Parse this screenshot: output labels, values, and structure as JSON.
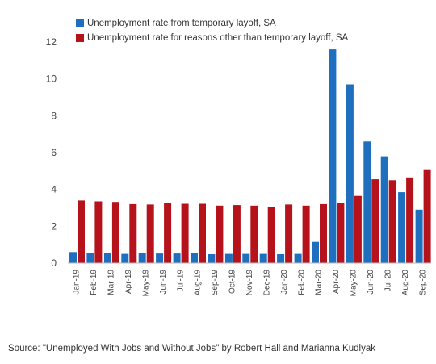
{
  "chart_data": {
    "type": "bar",
    "categories": [
      "Jan-19",
      "Feb-19",
      "Mar-19",
      "Apr-19",
      "May-19",
      "Jun-19",
      "Jul-19",
      "Aug-19",
      "Sep-19",
      "Oct-19",
      "Nov-19",
      "Dec-19",
      "Jan-20",
      "Feb-20",
      "Mar-20",
      "Apr-20",
      "May-20",
      "Jun-20",
      "Jul-20",
      "Aug-20",
      "Sep-20"
    ],
    "series": [
      {
        "name": "Unemployment rate from temporary layoff, SA",
        "color": "#1f6fbf",
        "values": [
          0.6,
          0.55,
          0.55,
          0.5,
          0.55,
          0.52,
          0.52,
          0.55,
          0.48,
          0.5,
          0.5,
          0.5,
          0.48,
          0.5,
          1.15,
          11.6,
          9.7,
          6.6,
          5.8,
          3.85,
          2.9
        ]
      },
      {
        "name": "Unemployment rate for reasons other than temporary layoff, SA",
        "color": "#b5121b",
        "values": [
          3.4,
          3.35,
          3.32,
          3.2,
          3.18,
          3.25,
          3.22,
          3.22,
          3.12,
          3.15,
          3.12,
          3.05,
          3.18,
          3.12,
          3.2,
          3.25,
          3.65,
          4.55,
          4.5,
          4.65,
          5.05
        ]
      }
    ],
    "yticks": [
      0,
      2,
      4,
      6,
      8,
      10,
      12
    ],
    "ylim": [
      0,
      12
    ],
    "legend_position": "top-left",
    "grid": false
  },
  "source": "Source: \"Unemployed With Jobs and Without Jobs\" by Robert Hall and Marianna Kudlyak"
}
